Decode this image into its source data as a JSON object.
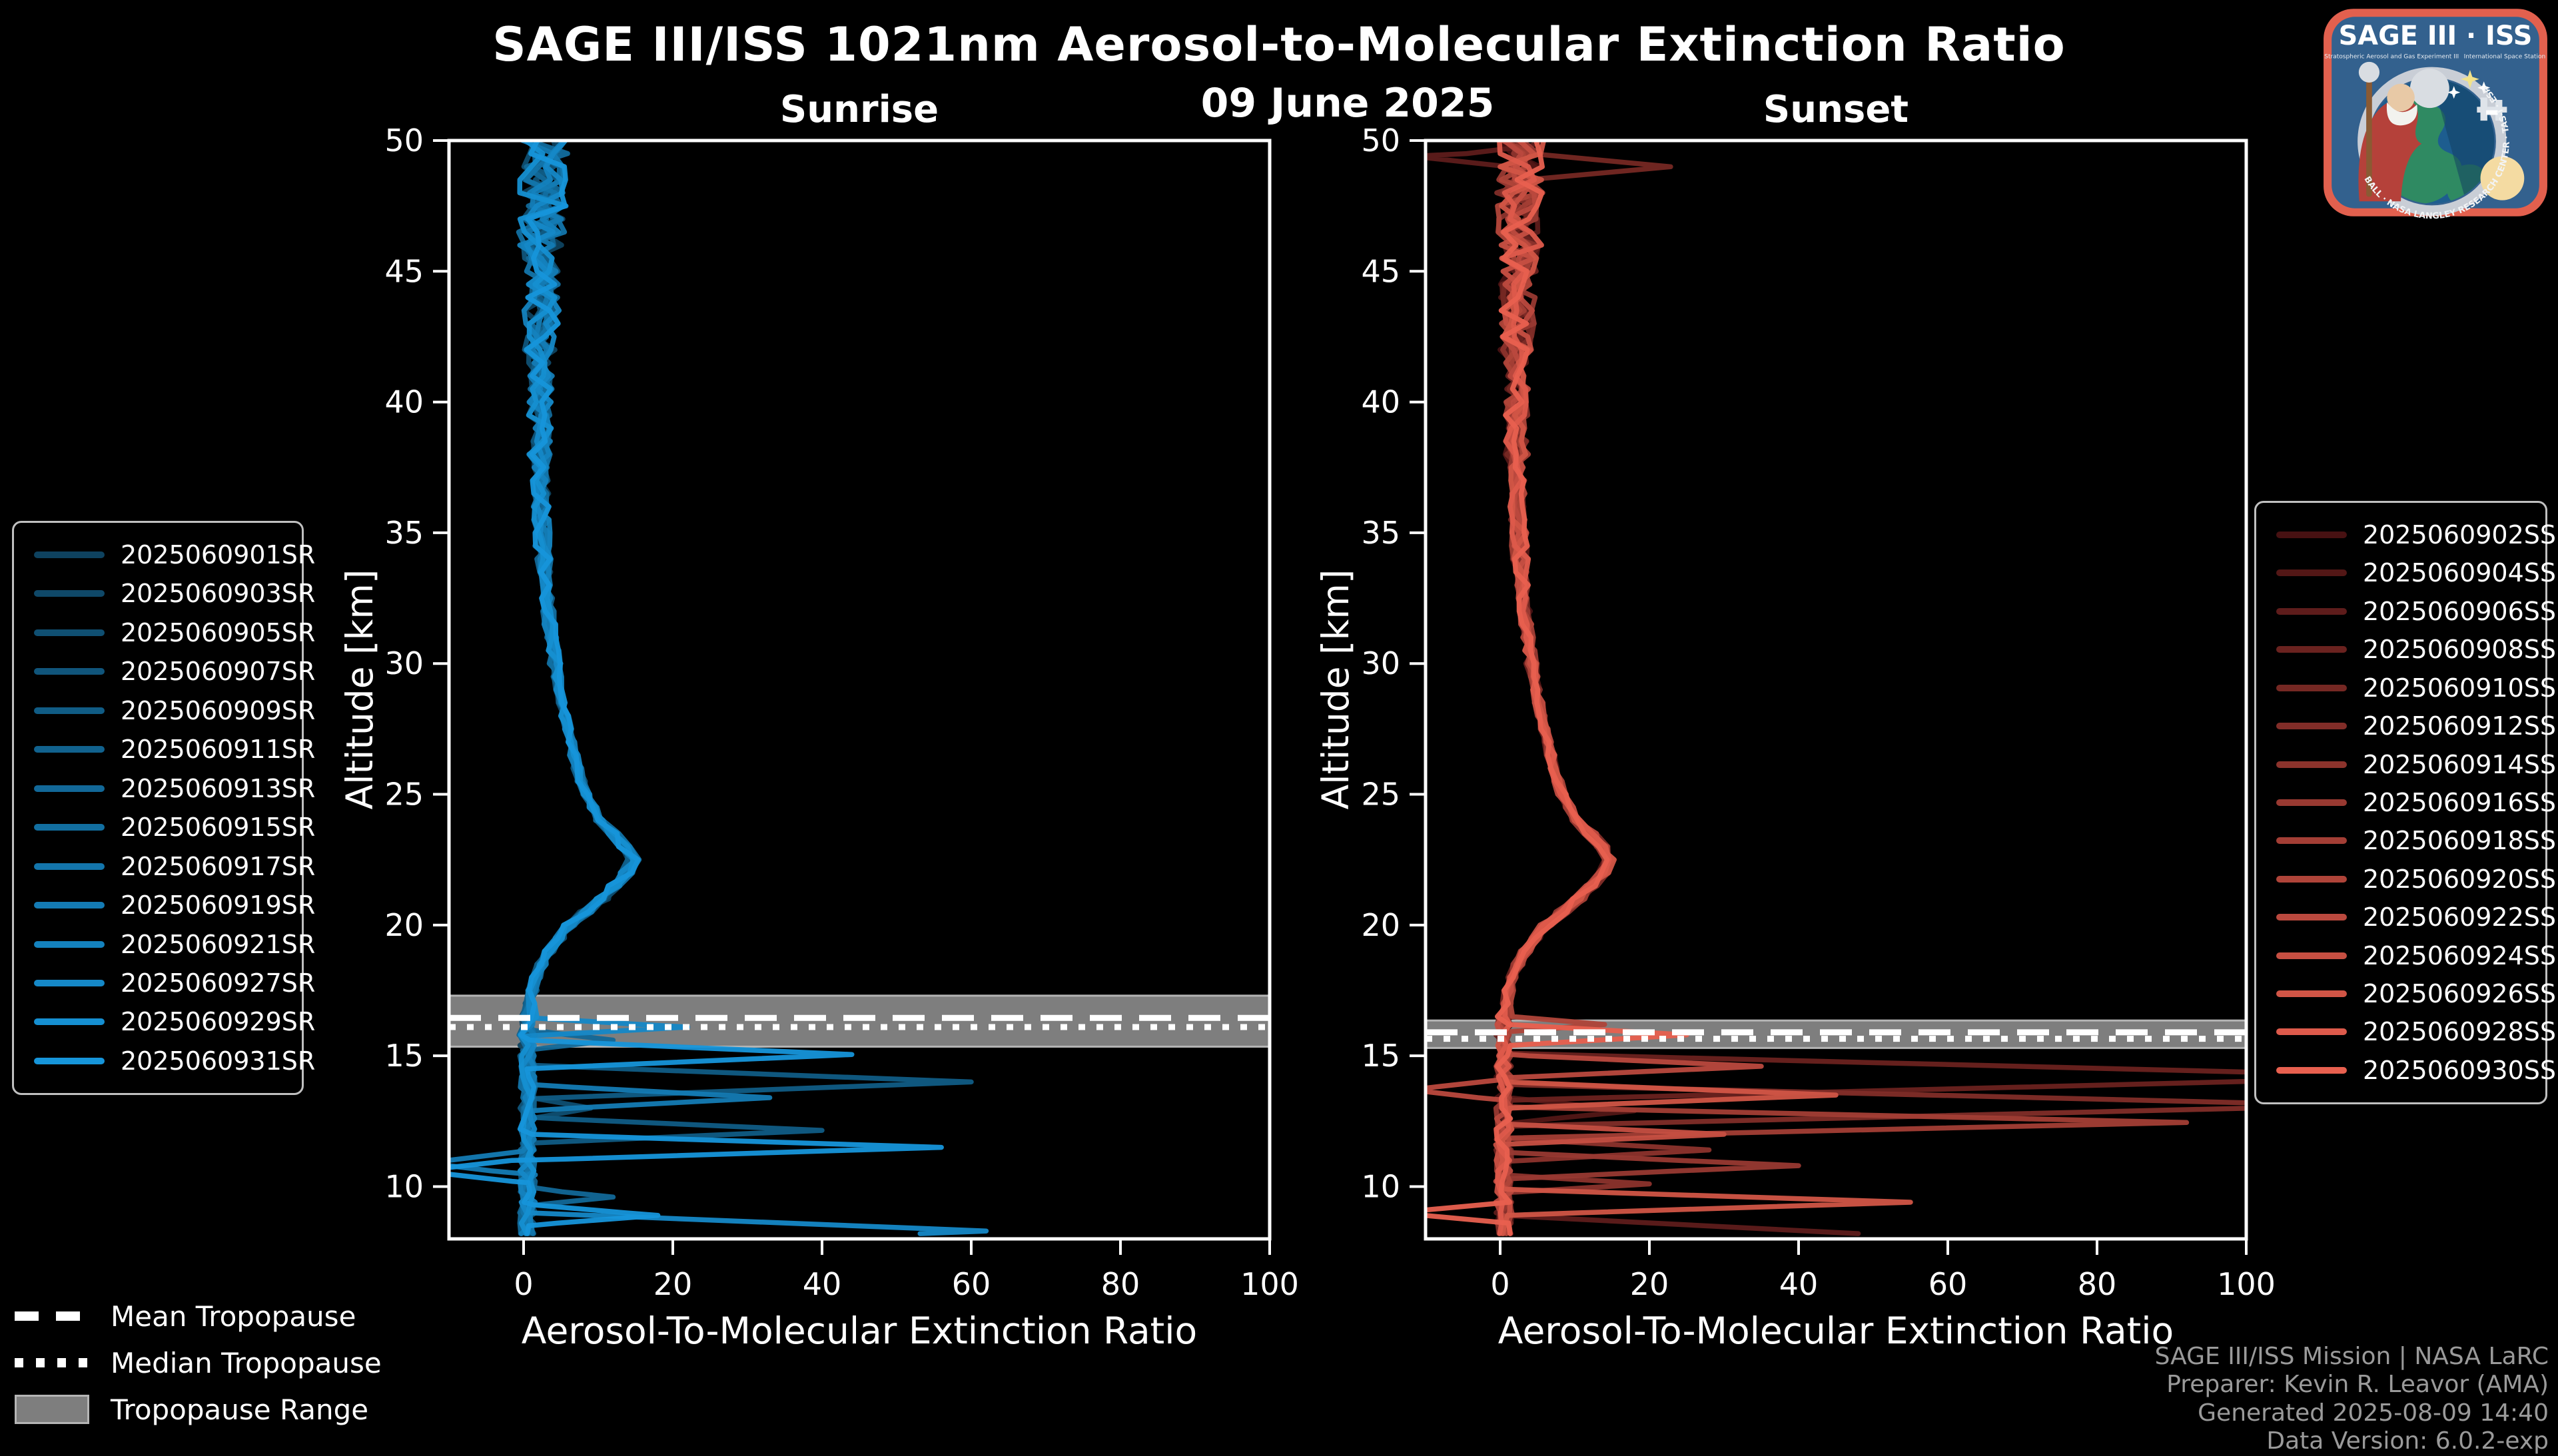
{
  "header": {
    "title": "SAGE III/ISS 1021nm Aerosol-to-Molecular Extinction Ratio",
    "date": "09 June 2025"
  },
  "chart_data": {
    "type": "line",
    "title": "SAGE III/ISS 1021nm Aerosol-to-Molecular Extinction Ratio",
    "subtitle": "09 June 2025",
    "x_axis": {
      "label": "Aerosol-To-Molecular Extinction Ratio",
      "min": -10,
      "max": 100,
      "ticks": [
        0,
        20,
        40,
        60,
        80,
        100
      ]
    },
    "y_axis": {
      "label": "Altitude [km]",
      "min": 8,
      "max": 50,
      "ticks": [
        10,
        15,
        20,
        25,
        30,
        35,
        40,
        45,
        50
      ]
    },
    "grid": "off",
    "legend_position": "outside-left-and-right",
    "base_profile": [
      [
        50,
        2.8
      ],
      [
        48,
        2.6
      ],
      [
        46,
        2.5
      ],
      [
        44,
        2.4
      ],
      [
        42,
        2.3
      ],
      [
        40,
        2.2
      ],
      [
        38,
        2.2
      ],
      [
        36,
        2.3
      ],
      [
        34,
        2.7
      ],
      [
        32,
        3.3
      ],
      [
        30,
        4.2
      ],
      [
        29,
        4.8
      ],
      [
        28,
        5.5
      ],
      [
        27,
        6.3
      ],
      [
        26,
        7.2
      ],
      [
        25,
        8.3
      ],
      [
        24,
        10.2
      ],
      [
        23.2,
        13.2
      ],
      [
        22.5,
        14.6
      ],
      [
        22,
        13.8
      ],
      [
        21,
        10.5
      ],
      [
        20,
        6.2
      ],
      [
        19.5,
        4.8
      ],
      [
        19,
        3.4
      ],
      [
        18.5,
        2.4
      ],
      [
        18,
        1.7
      ],
      [
        17.5,
        1.2
      ],
      [
        17,
        0.9
      ],
      [
        16.5,
        0.7
      ],
      [
        16,
        0.6
      ],
      [
        15.5,
        0.5
      ]
    ],
    "noise_amplitude": [
      [
        46,
        3.2
      ],
      [
        42,
        2.4
      ],
      [
        38,
        1.6
      ],
      [
        34,
        1.1
      ],
      [
        30,
        0.8
      ],
      [
        24,
        0.6
      ],
      [
        20,
        0.9
      ],
      [
        17,
        0.7
      ],
      [
        8,
        1.1
      ]
    ],
    "below_tropopause_baseline": 0.5,
    "panels": [
      {
        "name": "Sunrise",
        "color_ramp": {
          "start": "#0e425f",
          "end": "#1695da"
        },
        "tropopause": {
          "range": [
            15.35,
            17.3
          ],
          "mean": 16.45,
          "median": 16.1
        },
        "events": [
          "2025060901SR",
          "2025060903SR",
          "2025060905SR",
          "2025060907SR",
          "2025060909SR",
          "2025060911SR",
          "2025060913SR",
          "2025060915SR",
          "2025060917SR",
          "2025060919SR",
          "2025060921SR",
          "2025060927SR",
          "2025060929SR",
          "2025060931SR"
        ],
        "features": [
          {
            "event": 13,
            "alt": 15.05,
            "peak": 44,
            "hw": 0.55
          },
          {
            "event": 13,
            "alt": 11.5,
            "peak": 56,
            "hw": 0.5
          },
          {
            "event": 13,
            "alt": 10.6,
            "peak": -14,
            "hw": 0.45
          },
          {
            "event": 13,
            "alt": 8.9,
            "peak": 18,
            "hw": 0.4
          },
          {
            "event": 4,
            "alt": 14.0,
            "peak": 60,
            "hw": 0.65
          },
          {
            "event": 4,
            "alt": 12.15,
            "peak": 40,
            "hw": 0.5
          },
          {
            "event": 9,
            "alt": 13.4,
            "peak": 33,
            "hw": 0.5
          },
          {
            "event": 9,
            "alt": 10.9,
            "peak": -13,
            "hw": 0.45
          },
          {
            "event": 11,
            "alt": 16.1,
            "peak": 22,
            "hw": 0.35
          },
          {
            "event": 11,
            "alt": 8.3,
            "peak": 62,
            "hw": 0.7
          },
          {
            "event": 6,
            "alt": 15.6,
            "peak": 12,
            "hw": 0.4
          },
          {
            "event": 6,
            "alt": 9.6,
            "peak": 12,
            "hw": 0.35
          },
          {
            "event": 2,
            "alt": 13.0,
            "peak": 9,
            "hw": 0.45
          }
        ]
      },
      {
        "name": "Sunset",
        "color_ramp": {
          "start": "#471112",
          "end": "#e8604f"
        },
        "tropopause": {
          "range": [
            15.3,
            16.35
          ],
          "mean": 15.9,
          "median": 15.65
        },
        "events": [
          "2025060902SS",
          "2025060904SS",
          "2025060906SS",
          "2025060908SS",
          "2025060910SS",
          "2025060912SS",
          "2025060914SS",
          "2025060916SS",
          "2025060918SS",
          "2025060920SS",
          "2025060922SS",
          "2025060924SS",
          "2025060926SS",
          "2025060928SS",
          "2025060930SS"
        ],
        "features": [
          {
            "event": 3,
            "alt": 14.2,
            "peak": 125,
            "hw": 0.9
          },
          {
            "event": 5,
            "alt": 13.1,
            "peak": 115,
            "hw": 0.8
          },
          {
            "event": 8,
            "alt": 12.45,
            "peak": 92,
            "hw": 0.6
          },
          {
            "event": 12,
            "alt": 13.5,
            "peak": 45,
            "hw": 0.5
          },
          {
            "event": 12,
            "alt": 9.4,
            "peak": 55,
            "hw": 0.5
          },
          {
            "event": 14,
            "alt": 15.8,
            "peak": 25,
            "hw": 0.4
          },
          {
            "event": 14,
            "alt": 9.0,
            "peak": -14,
            "hw": 0.4
          },
          {
            "event": 10,
            "alt": 14.6,
            "peak": 35,
            "hw": 0.45
          },
          {
            "event": 10,
            "alt": 13.7,
            "peak": -12,
            "hw": 0.4
          },
          {
            "event": 6,
            "alt": 11.4,
            "peak": 28,
            "hw": 0.45
          },
          {
            "event": 6,
            "alt": 10.1,
            "peak": 20,
            "hw": 0.35
          },
          {
            "event": 1,
            "alt": 12.9,
            "peak": 18,
            "hw": 0.5
          },
          {
            "event": 9,
            "alt": 16.2,
            "peak": 14,
            "hw": 0.3
          },
          {
            "event": 2,
            "alt": 49.4,
            "peak": -12,
            "hw": 0.4
          },
          {
            "event": 4,
            "alt": 49.0,
            "peak": 20,
            "hw": 0.5
          },
          {
            "event": 7,
            "alt": 10.8,
            "peak": 40,
            "hw": 0.5
          },
          {
            "event": 11,
            "alt": 12.0,
            "peak": 30,
            "hw": 0.4
          },
          {
            "event": 2,
            "alt": 8.2,
            "peak": 48,
            "hw": 0.7
          }
        ]
      }
    ]
  },
  "tropopause_legend": {
    "mean_label": "Mean Tropopause",
    "median_label": "Median Tropopause",
    "range_label": "Tropopause Range",
    "band_color": "#7e7e7e",
    "line_color": "#ffffff"
  },
  "credits": {
    "line1": "SAGE III/ISS Mission | NASA LaRC",
    "line2": "Preparer: Kevin R. Leavor (AMA)",
    "line3": "Generated 2025-08-09 14:40",
    "line4": "Data Version: 6.0.2-exp"
  },
  "logo": {
    "title": "SAGE III · ISS",
    "subtitle_left": "Stratospheric Aerosol and Gas Experiment III",
    "subtitle_right": "International Space Station",
    "ring_text": "BALL · NASA LANGLEY RESEARCH CENTER · TAS-I · ESA",
    "border_color": "#e2604e",
    "field_color": "#33618e"
  }
}
